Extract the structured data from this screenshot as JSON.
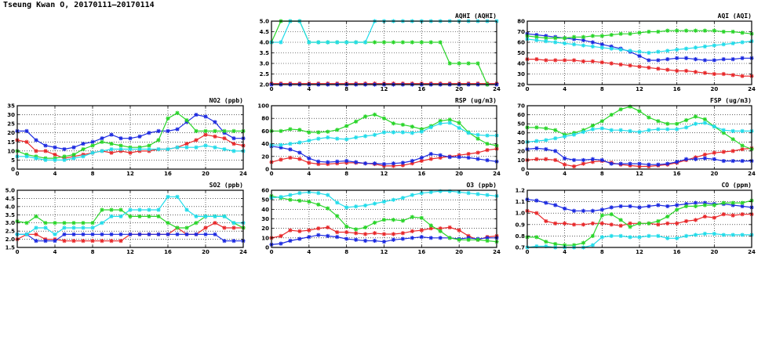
{
  "title": "Tseung Kwan O, 20170111–20170114",
  "colors": {
    "red": "#e8292b",
    "green": "#2ad52a",
    "blue": "#1c2ae0",
    "cyan": "#22dcea"
  },
  "chart_data": [
    {
      "id": "aqhi",
      "type": "line",
      "title": "AQHI (AQHI)",
      "xlim": [
        0,
        24
      ],
      "xticks": [
        0,
        4,
        8,
        12,
        16,
        20,
        24
      ],
      "ylim": [
        2.0,
        5.0
      ],
      "yticks": [
        "2.0",
        "2.5",
        "3.0",
        "3.5",
        "4.0",
        "4.5",
        "5.0"
      ],
      "grid": true,
      "series": [
        {
          "color": "red",
          "values": [
            2.05,
            2.05,
            2.05,
            2.05,
            2.05,
            2.05,
            2.05,
            2.05,
            2.05,
            2.05,
            2.05,
            2.05,
            2.05,
            2.05,
            2.05,
            2.05,
            2.05,
            2.05,
            2.05,
            2.05,
            2.05,
            2.05,
            2.05,
            2.05,
            2.05
          ]
        },
        {
          "color": "blue",
          "values": [
            2.0,
            2.0,
            2.0,
            2.0,
            2.0,
            2.0,
            2.0,
            2.0,
            2.0,
            2.0,
            2.0,
            2.0,
            2.0,
            2.0,
            2.0,
            2.0,
            2.0,
            2.0,
            2.0,
            2.0,
            2.0,
            2.0,
            2.0,
            2.0,
            2.0
          ]
        },
        {
          "color": "green",
          "values": [
            4.0,
            5.0,
            5.0,
            5.0,
            4.0,
            4.0,
            4.0,
            4.0,
            4.0,
            4.0,
            4.0,
            4.0,
            4.0,
            4.0,
            4.0,
            4.0,
            4.0,
            4.0,
            4.0,
            3.0,
            3.0,
            3.0,
            3.0,
            2.0,
            null
          ]
        },
        {
          "color": "cyan",
          "values": [
            4.0,
            4.0,
            5.0,
            5.0,
            4.0,
            4.0,
            4.0,
            4.0,
            4.0,
            4.0,
            4.0,
            5.0,
            5.0,
            5.0,
            5.0,
            5.0,
            5.0,
            5.0,
            5.0,
            5.0,
            5.0,
            5.0,
            5.0,
            5.0,
            5.0
          ]
        }
      ]
    },
    {
      "id": "aqi",
      "type": "line",
      "title": "AQI (AQI)",
      "xlim": [
        0,
        24
      ],
      "xticks": [
        0,
        4,
        8,
        12,
        16,
        20,
        24
      ],
      "ylim": [
        20,
        80
      ],
      "yticks": [
        "20",
        "30",
        "40",
        "50",
        "60",
        "70",
        "80"
      ],
      "grid": true,
      "series": [
        {
          "color": "red",
          "values": [
            44,
            44,
            43,
            43,
            43,
            43,
            42,
            42,
            41,
            40,
            39,
            38,
            37,
            36,
            35,
            34,
            33,
            33,
            32,
            31,
            30,
            30,
            29,
            28,
            28
          ]
        },
        {
          "color": "blue",
          "values": [
            68,
            67,
            66,
            65,
            64,
            63,
            62,
            60,
            58,
            56,
            54,
            51,
            47,
            43,
            43,
            44,
            45,
            45,
            44,
            43,
            43,
            44,
            44,
            45,
            45
          ]
        },
        {
          "color": "green",
          "values": [
            66,
            65,
            64,
            64,
            64,
            65,
            65,
            66,
            66,
            67,
            68,
            68,
            69,
            70,
            70,
            71,
            71,
            71,
            71,
            71,
            71,
            70,
            70,
            69,
            68
          ]
        },
        {
          "color": "cyan",
          "values": [
            63,
            62,
            61,
            60,
            59,
            58,
            57,
            56,
            55,
            54,
            53,
            52,
            51,
            50,
            51,
            52,
            53,
            54,
            55,
            56,
            57,
            58,
            59,
            60,
            61
          ]
        }
      ]
    },
    {
      "id": "no2",
      "type": "line",
      "title": "NO2 (ppb)",
      "xlim": [
        0,
        24
      ],
      "xticks": [
        0,
        4,
        8,
        12,
        16,
        20,
        24
      ],
      "ylim": [
        0,
        35
      ],
      "yticks": [
        "0",
        "5",
        "10",
        "15",
        "20",
        "25",
        "30",
        "35"
      ],
      "grid": true,
      "series": [
        {
          "color": "red",
          "values": [
            16,
            15,
            10,
            10,
            8,
            6,
            7,
            8,
            9,
            10,
            9,
            10,
            9,
            10,
            10,
            11,
            11,
            12,
            14,
            16,
            19,
            18,
            17,
            14,
            13
          ]
        },
        {
          "color": "blue",
          "values": [
            21,
            21,
            16,
            13,
            12,
            11,
            12,
            14,
            15,
            17,
            19,
            17,
            17,
            18,
            20,
            21,
            21,
            22,
            26,
            30,
            29,
            26,
            20,
            17,
            17
          ]
        },
        {
          "color": "green",
          "values": [
            10,
            8,
            7,
            6,
            6,
            7,
            8,
            11,
            13,
            15,
            14,
            13,
            12,
            12,
            13,
            16,
            28,
            31,
            27,
            21,
            21,
            21,
            21,
            21,
            21
          ]
        },
        {
          "color": "cyan",
          "values": [
            7,
            7,
            6,
            5,
            5,
            5,
            6,
            7,
            9,
            10,
            11,
            11,
            11,
            11,
            11,
            11,
            11,
            12,
            12,
            12,
            13,
            12,
            11,
            10,
            10
          ]
        }
      ]
    },
    {
      "id": "rsp",
      "type": "line",
      "title": "RSP (ug/m3)",
      "xlim": [
        0,
        24
      ],
      "xticks": [
        0,
        4,
        8,
        12,
        16,
        20,
        24
      ],
      "ylim": [
        0,
        100
      ],
      "yticks": [
        "0",
        "20",
        "40",
        "60",
        "80",
        "100"
      ],
      "grid": true,
      "series": [
        {
          "color": "red",
          "values": [
            11,
            15,
            18,
            16,
            10,
            8,
            8,
            9,
            10,
            10,
            9,
            8,
            5,
            5,
            6,
            9,
            13,
            16,
            18,
            20,
            22,
            24,
            26,
            30,
            32
          ]
        },
        {
          "color": "blue",
          "values": [
            36,
            34,
            31,
            26,
            17,
            12,
            11,
            12,
            13,
            11,
            9,
            9,
            8,
            9,
            10,
            13,
            18,
            24,
            22,
            19,
            19,
            18,
            16,
            14,
            12
          ]
        },
        {
          "color": "green",
          "values": [
            60,
            60,
            63,
            62,
            58,
            58,
            59,
            62,
            68,
            75,
            83,
            86,
            80,
            72,
            70,
            67,
            63,
            68,
            76,
            78,
            73,
            58,
            48,
            40,
            37
          ]
        },
        {
          "color": "cyan",
          "values": [
            38,
            38,
            40,
            42,
            45,
            48,
            50,
            48,
            47,
            50,
            52,
            54,
            58,
            58,
            58,
            57,
            59,
            66,
            72,
            73,
            65,
            57,
            54,
            53,
            53
          ]
        }
      ]
    },
    {
      "id": "fsp",
      "type": "line",
      "title": "FSP (ug/m3)",
      "xlim": [
        0,
        24
      ],
      "xticks": [
        0,
        4,
        8,
        12,
        16,
        20,
        24
      ],
      "ylim": [
        0,
        70
      ],
      "yticks": [
        "0",
        "10",
        "20",
        "30",
        "40",
        "50",
        "60",
        "70"
      ],
      "grid": true,
      "series": [
        {
          "color": "red",
          "values": [
            10,
            11,
            11,
            10,
            5,
            3,
            6,
            8,
            9,
            7,
            5,
            4,
            3,
            3,
            4,
            5,
            7,
            10,
            13,
            16,
            18,
            19,
            20,
            22,
            23
          ]
        },
        {
          "color": "blue",
          "values": [
            22,
            23,
            22,
            20,
            12,
            10,
            10,
            11,
            10,
            6,
            6,
            6,
            6,
            5,
            5,
            6,
            8,
            11,
            11,
            12,
            11,
            9,
            9,
            9,
            9
          ]
        },
        {
          "color": "green",
          "values": [
            46,
            46,
            45,
            43,
            38,
            40,
            43,
            48,
            53,
            60,
            66,
            69,
            64,
            57,
            53,
            50,
            50,
            54,
            58,
            55,
            47,
            40,
            33,
            26,
            22
          ]
        },
        {
          "color": "cyan",
          "values": [
            30,
            31,
            32,
            34,
            36,
            38,
            41,
            44,
            45,
            43,
            43,
            42,
            41,
            43,
            44,
            44,
            44,
            46,
            50,
            51,
            47,
            43,
            42,
            42,
            42
          ]
        }
      ]
    },
    {
      "id": "so2",
      "type": "line",
      "title": "SO2 (ppb)",
      "xlim": [
        0,
        24
      ],
      "xticks": [
        0,
        4,
        8,
        12,
        16,
        20,
        24
      ],
      "ylim": [
        1.5,
        5.0
      ],
      "yticks": [
        "1.5",
        "2.0",
        "2.5",
        "3.0",
        "3.5",
        "4.0",
        "4.5",
        "5.0"
      ],
      "grid": true,
      "series": [
        {
          "color": "red",
          "values": [
            2.0,
            2.3,
            2.3,
            2.0,
            2.0,
            1.9,
            1.9,
            1.9,
            1.9,
            1.9,
            1.9,
            1.9,
            2.3,
            2.3,
            2.3,
            2.3,
            2.3,
            2.7,
            2.3,
            2.3,
            2.7,
            3.0,
            2.7,
            2.7,
            2.7
          ]
        },
        {
          "color": "blue",
          "values": [
            2.3,
            2.3,
            1.9,
            1.9,
            1.9,
            2.3,
            2.3,
            2.3,
            2.3,
            2.3,
            2.3,
            2.3,
            2.3,
            2.3,
            2.3,
            2.3,
            2.3,
            2.3,
            2.3,
            2.3,
            2.3,
            2.3,
            1.9,
            1.9,
            1.9
          ]
        },
        {
          "color": "green",
          "values": [
            3.1,
            3.0,
            3.4,
            3.0,
            3.0,
            3.0,
            3.0,
            3.0,
            3.0,
            3.8,
            3.8,
            3.8,
            3.4,
            3.4,
            3.4,
            3.4,
            3.0,
            2.7,
            2.7,
            3.0,
            3.4,
            3.4,
            3.4,
            3.0,
            2.7
          ]
        },
        {
          "color": "cyan",
          "values": [
            2.3,
            2.3,
            2.7,
            2.7,
            2.3,
            2.7,
            2.7,
            2.7,
            2.7,
            3.0,
            3.4,
            3.4,
            3.8,
            3.8,
            3.8,
            3.8,
            4.6,
            4.6,
            3.8,
            3.4,
            3.4,
            3.4,
            3.4,
            3.0,
            3.0
          ]
        }
      ]
    },
    {
      "id": "o3",
      "type": "line",
      "title": "O3 (ppb)",
      "xlim": [
        0,
        24
      ],
      "xticks": [
        0,
        4,
        8,
        12,
        16,
        20,
        24
      ],
      "ylim": [
        0,
        60
      ],
      "yticks": [
        "0",
        "10",
        "20",
        "30",
        "40",
        "50",
        "60"
      ],
      "grid": true,
      "series": [
        {
          "color": "red",
          "values": [
            10,
            12,
            18,
            17,
            18,
            20,
            21,
            16,
            16,
            15,
            14,
            15,
            14,
            14,
            15,
            17,
            18,
            20,
            20,
            21,
            18,
            12,
            8,
            11,
            12
          ]
        },
        {
          "color": "blue",
          "values": [
            3,
            4,
            7,
            9,
            11,
            13,
            12,
            11,
            9,
            8,
            7,
            7,
            6,
            8,
            9,
            10,
            11,
            10,
            10,
            10,
            9,
            10,
            9,
            10,
            10
          ]
        },
        {
          "color": "green",
          "values": [
            54,
            52,
            50,
            49,
            48,
            45,
            41,
            33,
            22,
            19,
            21,
            26,
            29,
            29,
            28,
            32,
            31,
            23,
            17,
            10,
            8,
            8,
            8,
            7,
            6
          ]
        },
        {
          "color": "cyan",
          "values": [
            52,
            53,
            55,
            57,
            58,
            57,
            55,
            47,
            42,
            43,
            44,
            46,
            48,
            50,
            52,
            55,
            57,
            58,
            59,
            59,
            58,
            57,
            56,
            55,
            54
          ]
        }
      ]
    },
    {
      "id": "co",
      "type": "line",
      "title": "CO (ppm)",
      "xlim": [
        0,
        24
      ],
      "xticks": [
        0,
        4,
        8,
        12,
        16,
        20,
        24
      ],
      "ylim": [
        0.7,
        1.2
      ],
      "yticks": [
        "0.7",
        "0.8",
        "0.9",
        "1.0",
        "1.1",
        "1.2"
      ],
      "grid": true,
      "series": [
        {
          "color": "red",
          "values": [
            1.02,
            1.0,
            0.93,
            0.91,
            0.91,
            0.9,
            0.9,
            0.91,
            0.91,
            0.9,
            0.89,
            0.91,
            0.91,
            0.91,
            0.9,
            0.91,
            0.91,
            0.93,
            0.94,
            0.97,
            0.96,
            0.99,
            0.98,
            0.99,
            0.99
          ]
        },
        {
          "color": "blue",
          "values": [
            1.12,
            1.11,
            1.09,
            1.07,
            1.04,
            1.02,
            1.02,
            1.02,
            1.03,
            1.05,
            1.06,
            1.06,
            1.05,
            1.06,
            1.07,
            1.06,
            1.07,
            1.08,
            1.09,
            1.09,
            1.08,
            1.08,
            1.07,
            1.06,
            1.05
          ]
        },
        {
          "color": "green",
          "values": [
            0.79,
            0.79,
            0.75,
            0.73,
            0.72,
            0.72,
            0.74,
            0.8,
            0.98,
            0.99,
            0.94,
            0.88,
            0.91,
            0.91,
            0.93,
            0.97,
            1.03,
            1.06,
            1.06,
            1.07,
            1.07,
            1.09,
            1.09,
            1.09,
            1.11
          ]
        },
        {
          "color": "cyan",
          "values": [
            0.7,
            0.71,
            0.71,
            0.7,
            0.7,
            0.7,
            0.7,
            0.72,
            0.79,
            0.8,
            0.8,
            0.79,
            0.79,
            0.8,
            0.8,
            0.78,
            0.78,
            0.8,
            0.81,
            0.82,
            0.82,
            0.81,
            0.81,
            0.81,
            0.81
          ]
        }
      ]
    }
  ]
}
